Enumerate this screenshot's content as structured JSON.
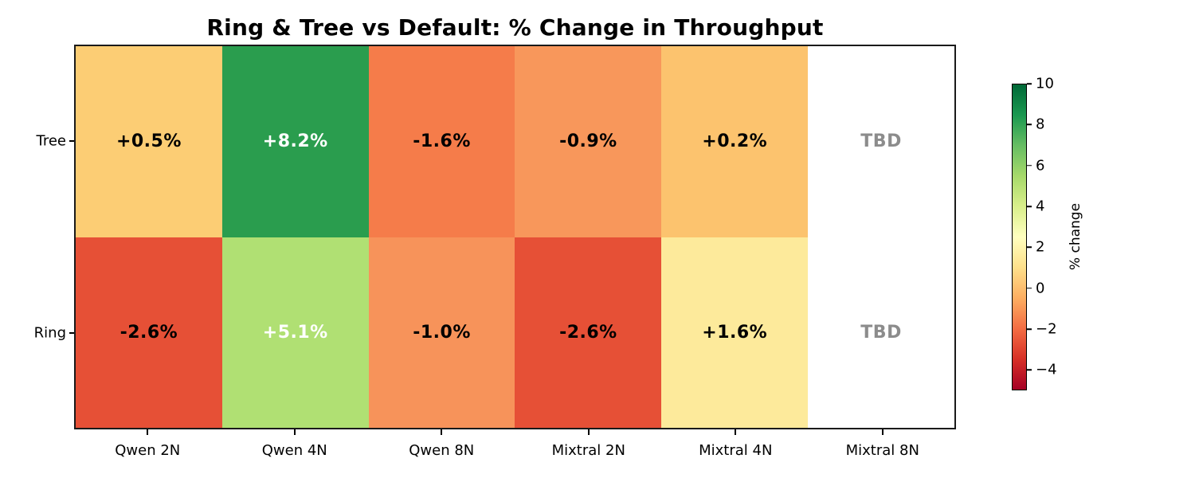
{
  "chart_data": {
    "type": "heatmap",
    "title": "Ring & Tree vs Default: % Change in Throughput",
    "x_categories": [
      "Qwen 2N",
      "Qwen 4N",
      "Qwen 8N",
      "Mixtral 2N",
      "Mixtral 4N",
      "Mixtral 8N"
    ],
    "y_categories": [
      "Tree",
      "Ring"
    ],
    "values": [
      [
        0.5,
        8.2,
        -1.6,
        -0.9,
        0.2,
        null
      ],
      [
        -2.6,
        5.1,
        -1.0,
        -2.6,
        1.6,
        null
      ]
    ],
    "cells": [
      [
        {
          "label": "+0.5%",
          "bg": "#fccd74",
          "fg": "#000000"
        },
        {
          "label": "+8.2%",
          "bg": "#2a9d4e",
          "fg": "#ffffff"
        },
        {
          "label": "-1.6%",
          "bg": "#f57c4a",
          "fg": "#000000"
        },
        {
          "label": "-0.9%",
          "bg": "#f8975b",
          "fg": "#000000"
        },
        {
          "label": "+0.2%",
          "bg": "#fcc36e",
          "fg": "#000000"
        },
        {
          "label": "TBD",
          "bg": "#ffffff",
          "fg": "#8c8c8c"
        }
      ],
      [
        {
          "label": "-2.6%",
          "bg": "#e65036",
          "fg": "#000000"
        },
        {
          "label": "+5.1%",
          "bg": "#b0e073",
          "fg": "#ffffff"
        },
        {
          "label": "-1.0%",
          "bg": "#f7935a",
          "fg": "#000000"
        },
        {
          "label": "-2.6%",
          "bg": "#e65036",
          "fg": "#000000"
        },
        {
          "label": "+1.6%",
          "bg": "#fdea9b",
          "fg": "#000000"
        },
        {
          "label": "TBD",
          "bg": "#ffffff",
          "fg": "#8c8c8c"
        }
      ]
    ],
    "colorbar": {
      "label": "% change",
      "colormap": "RdYlGn",
      "range": [
        -5,
        10
      ],
      "ticks": [
        {
          "value": 10,
          "label": "10"
        },
        {
          "value": 8,
          "label": "8"
        },
        {
          "value": 6,
          "label": "6"
        },
        {
          "value": 4,
          "label": "4"
        },
        {
          "value": 2,
          "label": "2"
        },
        {
          "value": 0,
          "label": "0"
        },
        {
          "value": -2,
          "label": "−2"
        },
        {
          "value": -4,
          "label": "−4"
        }
      ],
      "gradient_stops": [
        "#a50026",
        "#d73027",
        "#f46d43",
        "#fdae61",
        "#fee08b",
        "#ffffbf",
        "#d9ef8b",
        "#a6d96a",
        "#66bd63",
        "#1a9850",
        "#006837"
      ]
    },
    "grid": false,
    "legend_position": "right-colorbar",
    "tbd_note_color": "#8c8c8c"
  }
}
